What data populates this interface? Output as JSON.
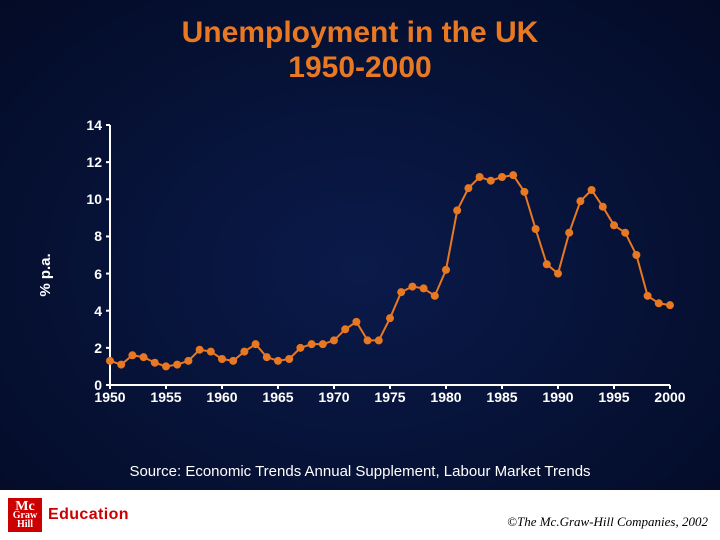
{
  "title": "Unemployment in the UK\n1950-2000",
  "y_axis_label": "% p.a.",
  "source": "Source: Economic Trends Annual Supplement, Labour Market Trends",
  "copyright": "©The Mc.Graw-Hill Companies, 2002",
  "logo": {
    "line1": "Mc",
    "line2": "Graw",
    "line3": "Hill",
    "text": "Education"
  },
  "chart": {
    "type": "line",
    "line_color": "#e87822",
    "line_width": 2,
    "marker_color": "#e87822",
    "marker_radius": 4,
    "axis_color": "#ffffff",
    "background": "transparent",
    "xlim": [
      1950,
      2000
    ],
    "ylim": [
      0,
      14
    ],
    "x_ticks": [
      1950,
      1955,
      1960,
      1965,
      1970,
      1975,
      1980,
      1985,
      1990,
      1995,
      2000
    ],
    "y_ticks": [
      0,
      2,
      4,
      6,
      8,
      10,
      12,
      14
    ],
    "tick_fontsize": 14,
    "tick_color": "#ffffff",
    "tick_fontweight": "bold",
    "title_fontsize": 30,
    "title_color": "#e87822",
    "series": [
      {
        "x": 1950,
        "y": 1.3
      },
      {
        "x": 1951,
        "y": 1.1
      },
      {
        "x": 1952,
        "y": 1.6
      },
      {
        "x": 1953,
        "y": 1.5
      },
      {
        "x": 1954,
        "y": 1.2
      },
      {
        "x": 1955,
        "y": 1.0
      },
      {
        "x": 1956,
        "y": 1.1
      },
      {
        "x": 1957,
        "y": 1.3
      },
      {
        "x": 1958,
        "y": 1.9
      },
      {
        "x": 1959,
        "y": 1.8
      },
      {
        "x": 1960,
        "y": 1.4
      },
      {
        "x": 1961,
        "y": 1.3
      },
      {
        "x": 1962,
        "y": 1.8
      },
      {
        "x": 1963,
        "y": 2.2
      },
      {
        "x": 1964,
        "y": 1.5
      },
      {
        "x": 1965,
        "y": 1.3
      },
      {
        "x": 1966,
        "y": 1.4
      },
      {
        "x": 1967,
        "y": 2.0
      },
      {
        "x": 1968,
        "y": 2.2
      },
      {
        "x": 1969,
        "y": 2.2
      },
      {
        "x": 1970,
        "y": 2.4
      },
      {
        "x": 1971,
        "y": 3.0
      },
      {
        "x": 1972,
        "y": 3.4
      },
      {
        "x": 1973,
        "y": 2.4
      },
      {
        "x": 1974,
        "y": 2.4
      },
      {
        "x": 1975,
        "y": 3.6
      },
      {
        "x": 1976,
        "y": 5.0
      },
      {
        "x": 1977,
        "y": 5.3
      },
      {
        "x": 1978,
        "y": 5.2
      },
      {
        "x": 1979,
        "y": 4.8
      },
      {
        "x": 1980,
        "y": 6.2
      },
      {
        "x": 1981,
        "y": 9.4
      },
      {
        "x": 1982,
        "y": 10.6
      },
      {
        "x": 1983,
        "y": 11.2
      },
      {
        "x": 1984,
        "y": 11.0
      },
      {
        "x": 1985,
        "y": 11.2
      },
      {
        "x": 1986,
        "y": 11.3
      },
      {
        "x": 1987,
        "y": 10.4
      },
      {
        "x": 1988,
        "y": 8.4
      },
      {
        "x": 1989,
        "y": 6.5
      },
      {
        "x": 1990,
        "y": 6.0
      },
      {
        "x": 1991,
        "y": 8.2
      },
      {
        "x": 1992,
        "y": 9.9
      },
      {
        "x": 1993,
        "y": 10.5
      },
      {
        "x": 1994,
        "y": 9.6
      },
      {
        "x": 1995,
        "y": 8.6
      },
      {
        "x": 1996,
        "y": 8.2
      },
      {
        "x": 1997,
        "y": 7.0
      },
      {
        "x": 1998,
        "y": 4.8
      },
      {
        "x": 1999,
        "y": 4.4
      },
      {
        "x": 2000,
        "y": 4.3
      }
    ]
  }
}
